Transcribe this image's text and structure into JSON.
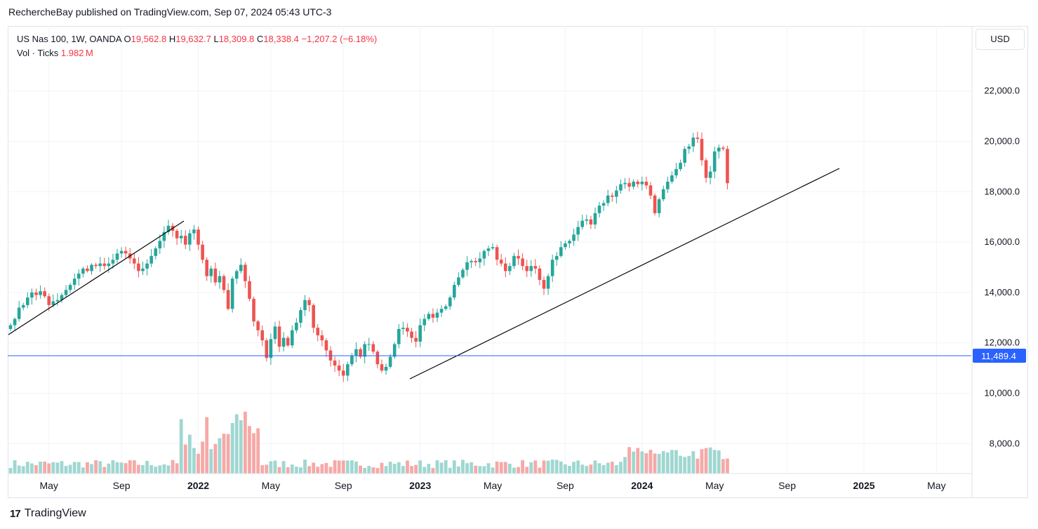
{
  "header": {
    "publisher_line": "RechercheBay published on TradingView.com, Sep 07, 2024 05:43 UTC-3"
  },
  "legend": {
    "symbol": "US Nas 100, 1W, OANDA",
    "o_label": "O",
    "o_value": "19,562.8",
    "h_label": "H",
    "h_value": "19,632.7",
    "l_label": "L",
    "l_value": "18,309.8",
    "c_label": "C",
    "c_value": "18,338.4",
    "change": "−1,207.2 (−6.18%)",
    "vol_label": "Vol · Ticks",
    "vol_value": "1.982 M"
  },
  "currency_button": "USD",
  "footer": {
    "logo_mark": "17",
    "brand": "TradingView"
  },
  "colors": {
    "up": "#26a69a",
    "down": "#ef5350",
    "vol_up": "#9fd7d1",
    "vol_down": "#f5a9a7",
    "hline": "#2962ff",
    "trend": "#000000"
  },
  "chart_data": {
    "type": "candlestick",
    "symbol": "US Nas 100",
    "interval": "1W",
    "exchange": "OANDA",
    "y_axis_ticks": [
      "8,000.0",
      "10,000.0",
      "12,000.0",
      "14,000.0",
      "16,000.0",
      "18,000.0",
      "20,000.0",
      "22,000.0"
    ],
    "y_tick_values": [
      8000,
      10000,
      12000,
      14000,
      16000,
      18000,
      20000,
      22000
    ],
    "ylim": [
      6900,
      24000
    ],
    "x_axis_labels": [
      "May",
      "Sep",
      "2022",
      "May",
      "Sep",
      "2023",
      "May",
      "Sep",
      "2024",
      "May",
      "Sep",
      "2025",
      "May"
    ],
    "x_axis_bold": [
      false,
      false,
      true,
      false,
      false,
      true,
      false,
      false,
      true,
      false,
      false,
      true,
      false
    ],
    "x_label_weeks": [
      9,
      26,
      44,
      61,
      78,
      96,
      113,
      130,
      148,
      165,
      182,
      200,
      217
    ],
    "horizontal_line": {
      "value": 11489.4,
      "label": "11,489.4"
    },
    "closes": [
      12700,
      12950,
      13400,
      13500,
      13800,
      14000,
      13900,
      14050,
      13850,
      13500,
      13650,
      13700,
      13900,
      14100,
      14300,
      14550,
      14750,
      14950,
      14850,
      15100,
      15050,
      15150,
      15050,
      15150,
      15300,
      15550,
      15650,
      15550,
      15350,
      15150,
      14850,
      14950,
      15150,
      15450,
      15750,
      16050,
      16400,
      16650,
      16450,
      16150,
      16250,
      15900,
      16350,
      16500,
      15900,
      15300,
      14650,
      14950,
      14400,
      14650,
      14100,
      13350,
      14550,
      14850,
      15100,
      14450,
      13750,
      12850,
      12500,
      12100,
      11400,
      12150,
      12650,
      11850,
      12200,
      11900,
      12500,
      12800,
      13300,
      13700,
      13500,
      12600,
      12300,
      12100,
      11700,
      11300,
      11100,
      10900,
      10700,
      11150,
      11500,
      11750,
      11450,
      11950,
      11950,
      11650,
      11150,
      10900,
      11050,
      11450,
      11950,
      12550,
      12600,
      12450,
      12200,
      12050,
      12700,
      12950,
      13150,
      13000,
      13200,
      13350,
      13450,
      13800,
      14300,
      14600,
      14900,
      15200,
      15250,
      15200,
      15350,
      15650,
      15750,
      15800,
      15300,
      15150,
      14850,
      15050,
      15450,
      15350,
      15050,
      14850,
      15050,
      14950,
      14500,
      14150,
      14650,
      15300,
      15450,
      15800,
      15950,
      16050,
      16300,
      16600,
      16850,
      16900,
      16700,
      17150,
      17450,
      17550,
      17850,
      17800,
      18050,
      18300,
      18350,
      18200,
      18400,
      18300,
      18400,
      18250,
      17850,
      17150,
      17700,
      18100,
      18400,
      18650,
      18900,
      19150,
      19700,
      19800,
      20150,
      20100,
      19250,
      18550,
      18800,
      19600,
      19750,
      19700,
      18338
    ]
  }
}
